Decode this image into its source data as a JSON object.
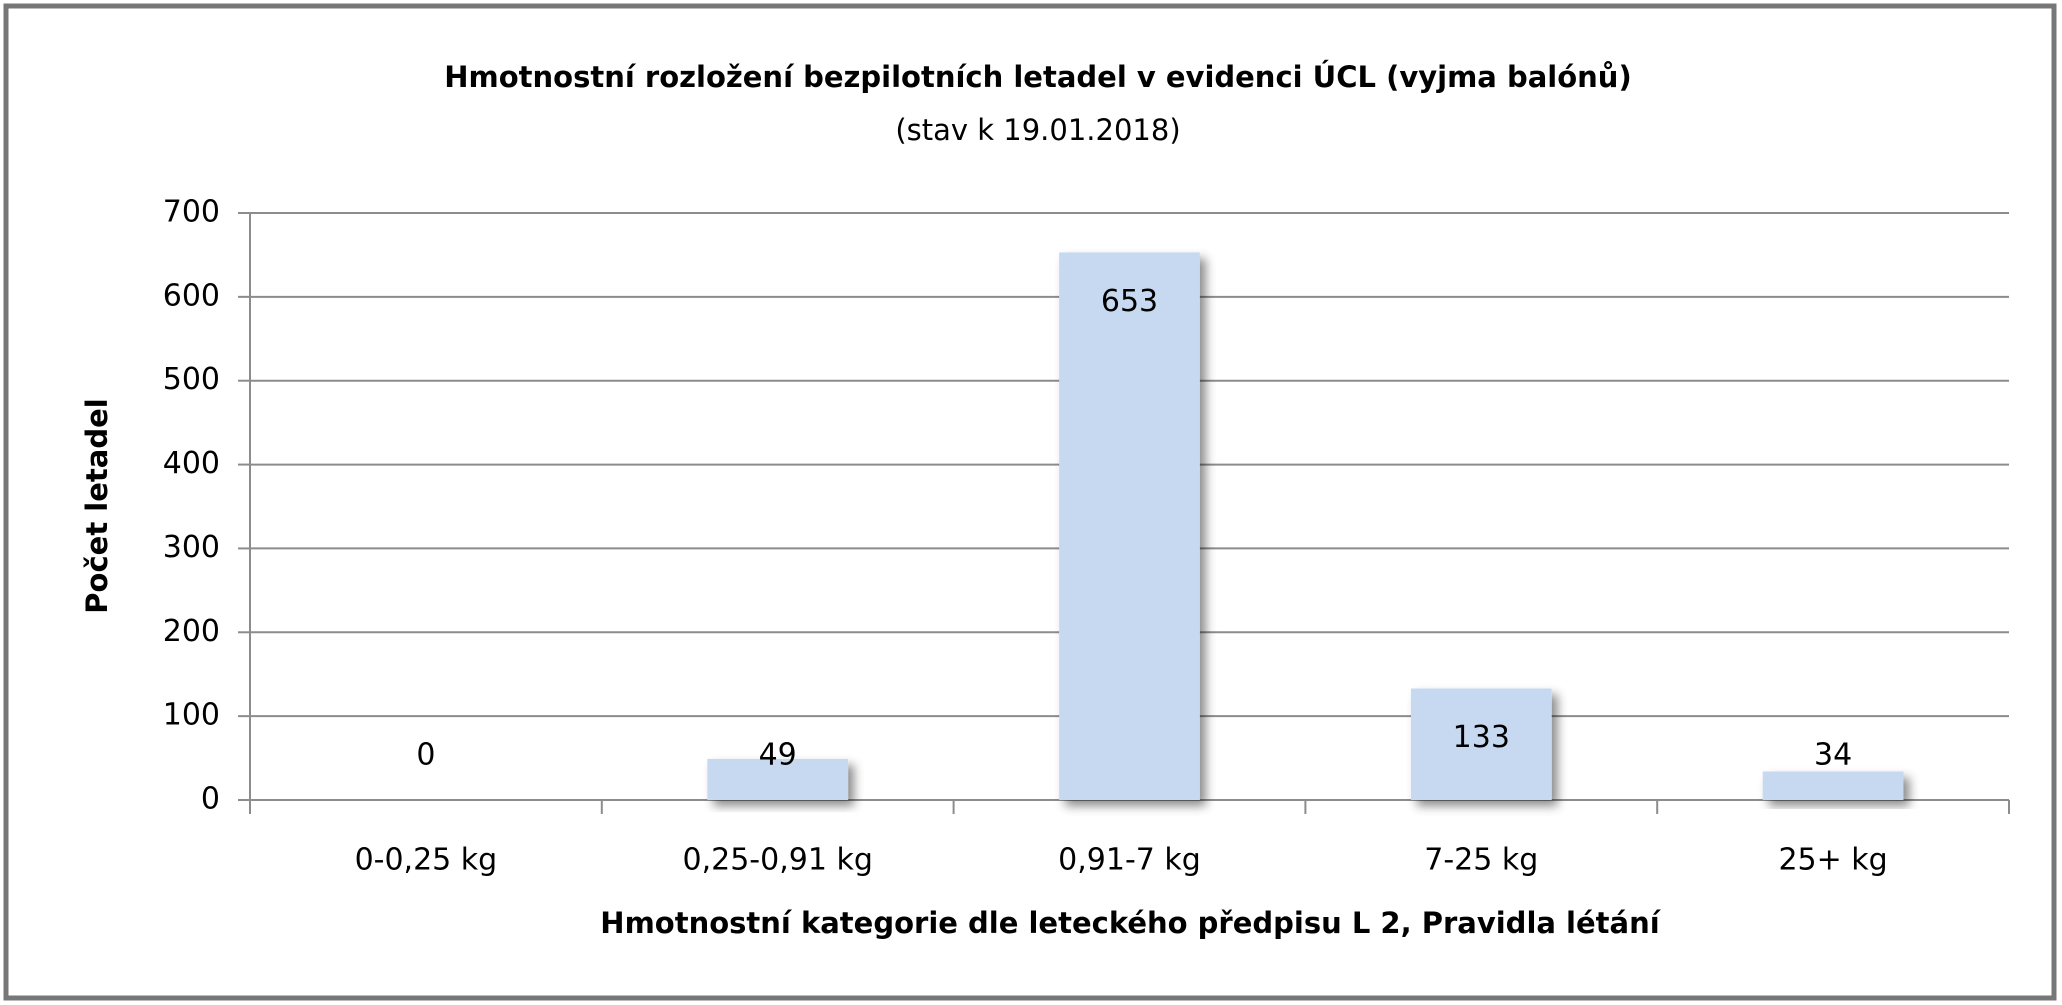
{
  "chart_data": {
    "type": "bar",
    "title": "Hmotnostní rozložení bezpilotních letadel v evidenci ÚCL (vyjma balónů)",
    "subtitle": "(stav k 19.01.2018)",
    "x_label": "Hmotnostní kategorie dle leteckého předpisu L 2, Pravidla létání",
    "y_label": "Počet letadel",
    "categories": [
      "0-0,25 kg",
      "0,25-0,91 kg",
      "0,91-7 kg",
      "7-25 kg",
      "25+ kg"
    ],
    "values": [
      0,
      49,
      653,
      133,
      34
    ],
    "color": "#c6d9f1",
    "ylim": [
      0,
      700
    ],
    "yticks": [
      0,
      100,
      200,
      300,
      400,
      500,
      600,
      700
    ],
    "grid": true
  }
}
